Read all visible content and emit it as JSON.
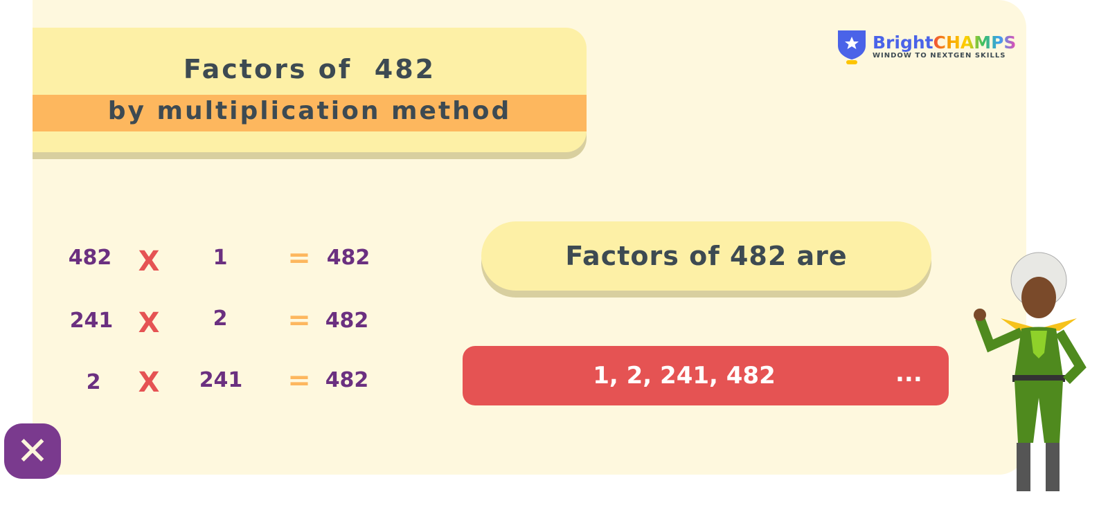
{
  "title": {
    "line1": "Factors of  482",
    "line2": "by multiplication method"
  },
  "logo": {
    "brand_part1": "Bright",
    "brand_part2": "CHAMPS",
    "tagline": "WINDOW TO NEXTGEN SKILLS"
  },
  "equations": [
    {
      "a": "482",
      "op": "X",
      "b": "1",
      "eq": "=",
      "result": "482"
    },
    {
      "a": "241",
      "op": "X",
      "b": "2",
      "eq": "=",
      "result": "482"
    },
    {
      "a": "2",
      "op": "X",
      "b": "241",
      "eq": "=",
      "result": "482"
    }
  ],
  "answer": {
    "heading": "Factors of 482 are",
    "factors": "1, 2, 241, 482",
    "ellipsis": "..."
  },
  "colors": {
    "panel": "#fef8de",
    "banner": "#fdf0a6",
    "strip": "#fdb75e",
    "number": "#6b3080",
    "times": "#e55353",
    "answer_bar": "#e55353",
    "close": "#7a3a8e"
  }
}
